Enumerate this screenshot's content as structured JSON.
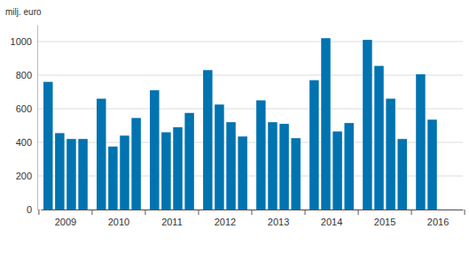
{
  "chart_data": {
    "type": "bar",
    "y_label": "milj. euro",
    "categories": [
      "2009",
      "2010",
      "2011",
      "2012",
      "2013",
      "2014",
      "2015",
      "2016"
    ],
    "series": [
      {
        "values": [
          760,
          660,
          710,
          830,
          650,
          770,
          1010,
          805
        ]
      },
      {
        "values": [
          455,
          375,
          460,
          625,
          520,
          1020,
          855,
          535
        ]
      },
      {
        "values": [
          420,
          440,
          490,
          520,
          510,
          465,
          660,
          null
        ]
      },
      {
        "values": [
          420,
          545,
          575,
          435,
          425,
          515,
          420,
          null
        ]
      }
    ],
    "color": "#0073b0",
    "ylim": [
      0,
      1100
    ],
    "yticks": [
      0,
      200,
      400,
      600,
      800,
      1000
    ],
    "grid": true
  }
}
